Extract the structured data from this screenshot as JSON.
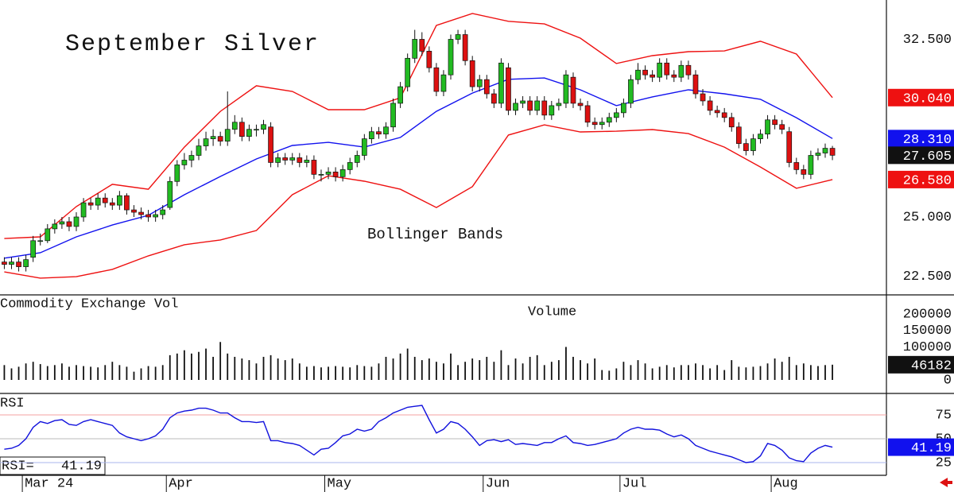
{
  "chart_data": [
    {
      "type": "candlestick",
      "title": "September Silver",
      "annotation": "Bollinger Bands",
      "up_color": "#22bb22",
      "down_color": "#dd1111",
      "xlim": [
        -0.6,
        122.5
      ],
      "ylim": [
        21.745,
        34.16
      ],
      "yticks": [
        {
          "value": 22.5,
          "label": "22.500"
        },
        {
          "value": 25,
          "label": "25.000"
        },
        {
          "value": 32.5,
          "label": "32.500"
        }
      ],
      "ohlc": [
        [
          23.1,
          23.3,
          22.8,
          23.0
        ],
        [
          23.0,
          23.3,
          22.8,
          23.1
        ],
        [
          23.1,
          23.3,
          22.7,
          22.9
        ],
        [
          22.9,
          23.4,
          22.7,
          23.2
        ],
        [
          23.3,
          24.2,
          23.1,
          24.0
        ],
        [
          24.0,
          24.3,
          23.8,
          24.0
        ],
        [
          24.0,
          24.7,
          23.9,
          24.5
        ],
        [
          24.5,
          24.9,
          24.3,
          24.7
        ],
        [
          24.7,
          25.0,
          24.5,
          24.8
        ],
        [
          24.8,
          25.0,
          24.4,
          24.6
        ],
        [
          24.6,
          25.2,
          24.4,
          25.0
        ],
        [
          25.0,
          25.8,
          24.8,
          25.6
        ],
        [
          25.6,
          25.8,
          25.3,
          25.5
        ],
        [
          25.5,
          26.0,
          25.3,
          25.8
        ],
        [
          25.8,
          26.0,
          25.4,
          25.6
        ],
        [
          25.6,
          25.8,
          25.3,
          25.5
        ],
        [
          25.5,
          26.1,
          25.3,
          25.9
        ],
        [
          25.9,
          26.0,
          25.1,
          25.3
        ],
        [
          25.3,
          25.5,
          25.0,
          25.2
        ],
        [
          25.2,
          25.4,
          24.9,
          25.1
        ],
        [
          25.1,
          25.3,
          24.8,
          25.0
        ],
        [
          25.0,
          25.3,
          24.8,
          25.1
        ],
        [
          25.1,
          25.5,
          24.9,
          25.3
        ],
        [
          25.4,
          26.7,
          25.3,
          26.5
        ],
        [
          26.5,
          27.4,
          26.3,
          27.2
        ],
        [
          27.2,
          27.7,
          27.0,
          27.4
        ],
        [
          27.4,
          27.8,
          27.1,
          27.6
        ],
        [
          27.6,
          28.3,
          27.4,
          28.0
        ],
        [
          28.0,
          28.6,
          27.8,
          28.3
        ],
        [
          28.3,
          28.7,
          28.0,
          28.4
        ],
        [
          28.4,
          28.6,
          28.0,
          28.2
        ],
        [
          28.2,
          30.3,
          28.0,
          28.7
        ],
        [
          28.7,
          29.3,
          28.5,
          29.0
        ],
        [
          29.0,
          29.2,
          28.2,
          28.4
        ],
        [
          28.4,
          28.9,
          28.2,
          28.7
        ],
        [
          28.7,
          28.9,
          28.4,
          28.7
        ],
        [
          28.7,
          29.1,
          28.5,
          28.9
        ],
        [
          28.8,
          29.0,
          27.1,
          27.3
        ],
        [
          27.3,
          27.7,
          27.1,
          27.5
        ],
        [
          27.5,
          27.7,
          27.2,
          27.4
        ],
        [
          27.4,
          27.7,
          27.2,
          27.5
        ],
        [
          27.5,
          27.7,
          27.1,
          27.3
        ],
        [
          27.3,
          27.6,
          27.1,
          27.4
        ],
        [
          27.4,
          27.6,
          26.6,
          26.8
        ],
        [
          26.8,
          27.0,
          26.5,
          26.8
        ],
        [
          26.8,
          27.1,
          26.6,
          26.9
        ],
        [
          26.9,
          27.1,
          26.5,
          26.7
        ],
        [
          26.7,
          27.2,
          26.5,
          27.0
        ],
        [
          27.0,
          27.5,
          26.8,
          27.3
        ],
        [
          27.3,
          27.8,
          27.1,
          27.6
        ],
        [
          27.6,
          28.5,
          27.4,
          28.3
        ],
        [
          28.3,
          28.8,
          28.1,
          28.6
        ],
        [
          28.6,
          28.8,
          28.3,
          28.5
        ],
        [
          28.5,
          29.0,
          28.3,
          28.8
        ],
        [
          28.8,
          30.0,
          28.6,
          29.8
        ],
        [
          29.8,
          30.7,
          29.6,
          30.5
        ],
        [
          30.5,
          31.9,
          30.3,
          31.7
        ],
        [
          31.7,
          32.9,
          31.5,
          32.5
        ],
        [
          32.5,
          32.8,
          31.8,
          32.0
        ],
        [
          32.0,
          32.2,
          31.1,
          31.3
        ],
        [
          31.3,
          31.5,
          30.1,
          30.3
        ],
        [
          30.3,
          31.2,
          30.1,
          31.0
        ],
        [
          31.0,
          32.7,
          30.8,
          32.5
        ],
        [
          32.5,
          32.9,
          32.3,
          32.7
        ],
        [
          32.7,
          32.9,
          31.4,
          31.6
        ],
        [
          31.6,
          31.8,
          30.3,
          30.5
        ],
        [
          30.5,
          31.0,
          30.3,
          30.8
        ],
        [
          30.8,
          31.0,
          30.0,
          30.2
        ],
        [
          30.2,
          30.4,
          29.6,
          29.8
        ],
        [
          29.8,
          31.7,
          29.6,
          31.5
        ],
        [
          31.3,
          31.5,
          29.3,
          29.5
        ],
        [
          29.5,
          30.0,
          29.3,
          29.8
        ],
        [
          29.8,
          30.1,
          29.6,
          29.9
        ],
        [
          29.9,
          30.1,
          29.3,
          29.5
        ],
        [
          29.5,
          30.1,
          29.3,
          29.9
        ],
        [
          29.9,
          30.1,
          29.1,
          29.3
        ],
        [
          29.3,
          29.9,
          29.1,
          29.7
        ],
        [
          29.7,
          30.0,
          29.5,
          29.8
        ],
        [
          29.8,
          31.2,
          29.6,
          31.0
        ],
        [
          30.9,
          31.1,
          29.6,
          29.8
        ],
        [
          29.8,
          30.0,
          29.5,
          29.7
        ],
        [
          29.7,
          29.9,
          28.8,
          29.0
        ],
        [
          29.0,
          29.2,
          28.7,
          28.9
        ],
        [
          28.9,
          29.2,
          28.7,
          29.0
        ],
        [
          29.0,
          29.4,
          28.8,
          29.2
        ],
        [
          29.2,
          29.6,
          29.0,
          29.4
        ],
        [
          29.4,
          30.0,
          29.2,
          29.8
        ],
        [
          29.8,
          31.0,
          29.6,
          30.8
        ],
        [
          30.8,
          31.5,
          30.6,
          31.2
        ],
        [
          31.2,
          31.4,
          30.8,
          31.0
        ],
        [
          31.0,
          31.2,
          30.7,
          30.9
        ],
        [
          30.9,
          31.7,
          30.7,
          31.5
        ],
        [
          31.5,
          31.7,
          30.8,
          31.0
        ],
        [
          31.0,
          31.2,
          30.7,
          30.9
        ],
        [
          30.9,
          31.6,
          30.7,
          31.4
        ],
        [
          31.4,
          31.6,
          30.8,
          31.0
        ],
        [
          31.0,
          31.2,
          30.0,
          30.2
        ],
        [
          30.2,
          30.4,
          29.7,
          29.9
        ],
        [
          29.9,
          30.1,
          29.3,
          29.5
        ],
        [
          29.5,
          29.7,
          29.2,
          29.4
        ],
        [
          29.4,
          29.6,
          29.0,
          29.2
        ],
        [
          29.2,
          29.4,
          28.6,
          28.8
        ],
        [
          28.8,
          29.0,
          27.9,
          28.1
        ],
        [
          28.1,
          28.3,
          27.6,
          27.8
        ],
        [
          27.8,
          28.5,
          27.6,
          28.3
        ],
        [
          28.3,
          28.7,
          28.1,
          28.5
        ],
        [
          28.5,
          29.3,
          28.3,
          29.1
        ],
        [
          29.1,
          29.3,
          28.7,
          28.9
        ],
        [
          28.9,
          29.1,
          28.5,
          28.7
        ],
        [
          28.6,
          28.8,
          27.1,
          27.3
        ],
        [
          27.3,
          27.5,
          26.8,
          27.0
        ],
        [
          27.0,
          27.2,
          26.6,
          26.8
        ],
        [
          26.8,
          27.8,
          26.6,
          27.6
        ],
        [
          27.6,
          27.9,
          27.4,
          27.7
        ],
        [
          27.7,
          28.1,
          27.5,
          27.9
        ],
        [
          27.9,
          28.0,
          27.4,
          27.605
        ]
      ],
      "last_color": "#111111",
      "bands": [
        {
          "color": "#ee1111",
          "x": [
            0,
            5,
            10,
            15,
            20,
            25,
            30,
            35,
            40,
            45,
            50,
            55,
            60,
            65,
            70,
            75,
            80,
            85,
            90,
            95,
            100,
            105,
            110,
            115
          ],
          "values": [
            24.09,
            24.16,
            25.44,
            26.38,
            26.17,
            27.95,
            29.46,
            30.54,
            30.3,
            29.53,
            29.53,
            30.03,
            33.09,
            33.59,
            33.26,
            33.15,
            32.55,
            31.48,
            31.81,
            31.98,
            32.01,
            32.42,
            31.88,
            30.04
          ],
          "last_value_label": "30.040"
        },
        {
          "color": "#1111ee",
          "x": [
            0,
            5,
            10,
            15,
            20,
            25,
            30,
            35,
            40,
            45,
            50,
            55,
            60,
            65,
            70,
            75,
            80,
            85,
            90,
            95,
            100,
            105,
            110,
            115
          ],
          "values": [
            23.26,
            23.49,
            24.16,
            24.66,
            25.07,
            25.94,
            26.71,
            27.45,
            28.02,
            28.15,
            27.95,
            28.36,
            29.46,
            30.23,
            30.81,
            30.87,
            30.37,
            29.7,
            30.07,
            30.37,
            30.2,
            29.97,
            29.19,
            28.31
          ],
          "last_value_label": "28.310"
        },
        {
          "color": "#ee1111",
          "x": [
            0,
            5,
            10,
            15,
            20,
            25,
            30,
            35,
            40,
            45,
            50,
            55,
            60,
            65,
            70,
            75,
            80,
            85,
            90,
            95,
            100,
            105,
            110,
            115
          ],
          "values": [
            22.68,
            22.42,
            22.48,
            22.79,
            23.36,
            23.83,
            24.03,
            24.43,
            25.94,
            26.74,
            26.51,
            26.17,
            25.4,
            26.28,
            28.46,
            28.89,
            28.59,
            28.62,
            28.69,
            28.52,
            27.95,
            27.11,
            26.21,
            26.58
          ],
          "last_value_label": "26.580"
        }
      ]
    },
    {
      "type": "bar",
      "title": "Commodity Exchange Vol",
      "annotation": "Volume",
      "color": "#111111",
      "last_color": "#111111",
      "xlim": [
        -0.6,
        122.5
      ],
      "ylim": [
        -38550,
        255420
      ],
      "yticks": [
        0,
        100000,
        150000,
        200000
      ],
      "values": [
        45000,
        35000,
        40000,
        50000,
        55000,
        48000,
        42000,
        45000,
        50000,
        40000,
        45000,
        42000,
        40000,
        38000,
        45000,
        55000,
        45000,
        40000,
        25000,
        35000,
        42000,
        40000,
        45000,
        75000,
        80000,
        90000,
        80000,
        85000,
        95000,
        70000,
        115000,
        80000,
        70000,
        65000,
        60000,
        50000,
        70000,
        75000,
        65000,
        60000,
        65000,
        50000,
        40000,
        42000,
        38000,
        40000,
        42000,
        40000,
        38000,
        45000,
        42000,
        40000,
        50000,
        70000,
        65000,
        80000,
        95000,
        70000,
        60000,
        65000,
        55000,
        50000,
        80000,
        45000,
        55000,
        65000,
        60000,
        70000,
        55000,
        90000,
        45000,
        65000,
        50000,
        70000,
        75000,
        45000,
        55000,
        60000,
        100000,
        70000,
        60000,
        50000,
        65000,
        30000,
        28000,
        35000,
        55000,
        45000,
        60000,
        50000,
        35000,
        40000,
        45000,
        38000,
        45000,
        45000,
        50000,
        45000,
        35000,
        45000,
        30000,
        60000,
        40000,
        38000,
        40000,
        42000,
        50000,
        65000,
        55000,
        70000,
        45000,
        50000,
        45000,
        42000,
        45000,
        46182
      ]
    },
    {
      "type": "line",
      "title": "RSI",
      "readout_label": "RSI=",
      "color": "#1111dd",
      "last_color": "#1111ee",
      "xlim": [
        -0.6,
        122.5
      ],
      "ylim": [
        11.67,
        96.67
      ],
      "yticks": [
        25,
        50,
        75
      ],
      "xticks": [
        {
          "value": 2.5,
          "label": "Mar 24"
        },
        {
          "value": 22.5,
          "label": "Apr"
        },
        {
          "value": 44.5,
          "label": "May"
        },
        {
          "value": 66.5,
          "label": "Jun"
        },
        {
          "value": 85.5,
          "label": "Jul"
        },
        {
          "value": 106.5,
          "label": "Aug"
        }
      ],
      "values": [
        39,
        40,
        43,
        50,
        62,
        68,
        66,
        69,
        70,
        65,
        64,
        68,
        70,
        68,
        66,
        64,
        56,
        52,
        50,
        48,
        50,
        53,
        60,
        72,
        77,
        79,
        80,
        82,
        82,
        80,
        77,
        77,
        72,
        68,
        68,
        67,
        68,
        48,
        48,
        46,
        45,
        43,
        38,
        33,
        39,
        40,
        46,
        53,
        55,
        60,
        58,
        60,
        68,
        72,
        77,
        80,
        83,
        84,
        85,
        70,
        56,
        60,
        68,
        66,
        60,
        52,
        43,
        48,
        49,
        47,
        49,
        44,
        45,
        44,
        43,
        46,
        46,
        50,
        53,
        46,
        45,
        43,
        44,
        46,
        48,
        50,
        56,
        60,
        62,
        60,
        60,
        59,
        55,
        52,
        54,
        50,
        43,
        40,
        37,
        35,
        33,
        31,
        28,
        25,
        26,
        32,
        45,
        43,
        38,
        30,
        27,
        26,
        35,
        40,
        43,
        41.19
      ]
    }
  ]
}
